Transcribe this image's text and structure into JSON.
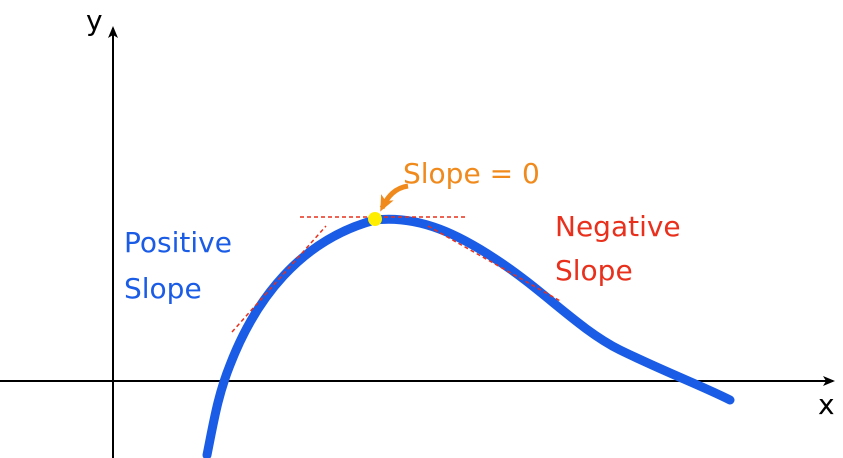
{
  "axes": {
    "y_label": "y",
    "x_label": "x"
  },
  "annotations": {
    "zero": "Slope = 0",
    "positive": [
      "Positive",
      "Slope"
    ],
    "negative": [
      "Negative",
      "Slope"
    ]
  }
}
